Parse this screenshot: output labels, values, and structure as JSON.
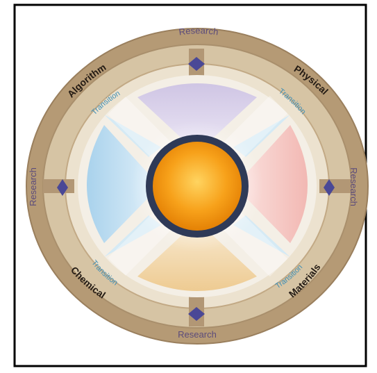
{
  "diagram": {
    "colors": {
      "frame": "#000000",
      "outer_ring": "#b39a78",
      "outer_ring_dark": "#8f7657",
      "middle_ring": "#c9b48f",
      "inner_ring": "#e8dcc6",
      "research_text": "#5b4b7b",
      "category_text": "#2a2018",
      "transition_text": "#3f8fb6",
      "diamond": "#4c4a9a",
      "center_core": "#f7a11a",
      "center_glow": "#ffd460",
      "center_ring": "#2e3b59",
      "petal_top": "#d8cfe6",
      "petal_left": "#bfdbec",
      "petal_right": "#f5c6c2",
      "petal_bottom": "#f1d6aa"
    },
    "outer_labels": {
      "research_top": "Research",
      "research_bottom": "Research",
      "research_left": "Research",
      "research_right": "Research"
    },
    "category_labels": {
      "top_left": "Algorithm",
      "top_right": "Physical",
      "bottom_left": "Chemical",
      "bottom_right": "Materials"
    },
    "transition_labels": {
      "top_left": "Transition",
      "top_right": "Transition",
      "bottom_left": "Transition",
      "bottom_right": "Transition"
    }
  }
}
